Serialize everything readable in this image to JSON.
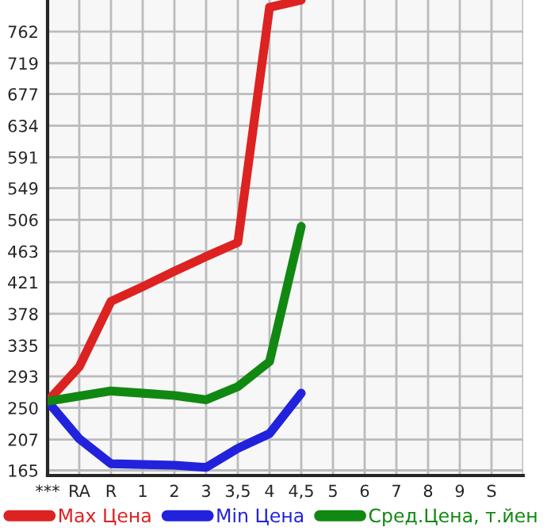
{
  "chart_data": {
    "type": "line",
    "categories": [
      "***",
      "RA",
      "R",
      "1",
      "2",
      "3",
      "3,5",
      "4",
      "4,5",
      "5",
      "6",
      "7",
      "8",
      "9",
      "S"
    ],
    "series": [
      {
        "name": "Max Цена",
        "color": "#dd2222",
        "values": [
          259,
          306,
          395,
          415,
          436,
          456,
          475,
          795,
          805,
          null,
          null,
          null,
          null,
          null,
          null
        ]
      },
      {
        "name": "Min Цена",
        "color": "#2222dd",
        "values": [
          259,
          208,
          174,
          173,
          172,
          169,
          195,
          215,
          270,
          null,
          null,
          null,
          null,
          null,
          null
        ]
      },
      {
        "name": "Сред.Цена, т.йен",
        "color": "#118811",
        "values": [
          259,
          266,
          273,
          270,
          267,
          261,
          279,
          313,
          497,
          null,
          null,
          null,
          null,
          null,
          null
        ]
      }
    ],
    "ylim": [
      158,
      805
    ],
    "yticks": [
      165,
      207,
      250,
      293,
      335,
      378,
      421,
      463,
      506,
      549,
      591,
      634,
      677,
      719,
      762
    ],
    "grid": true,
    "legend": "bottom",
    "marker": "none",
    "line_style": "solid"
  }
}
